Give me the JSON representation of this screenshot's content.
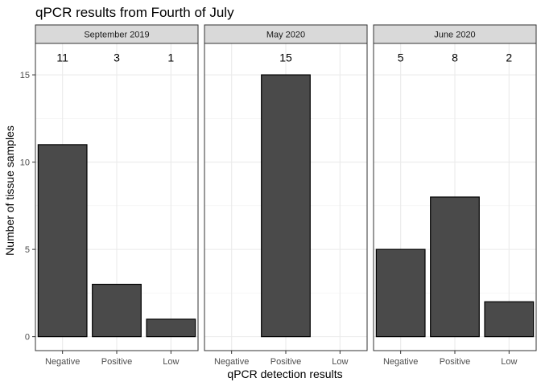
{
  "chart_data": {
    "type": "bar",
    "title": "qPCR results from Fourth of July",
    "xlabel": "qPCR detection results",
    "ylabel": "Number of tissue samples",
    "ylim": [
      -0.8,
      16.8
    ],
    "yticks": [
      0,
      5,
      10,
      15
    ],
    "categories": [
      "Negative",
      "Positive",
      "Low"
    ],
    "grid": true,
    "fill_color": "#4a4a4a",
    "strip_color": "#d9d9d9",
    "panels": [
      {
        "name": "September 2019",
        "values": [
          11,
          3,
          1
        ],
        "labels": [
          "11",
          "3",
          "1"
        ]
      },
      {
        "name": "May 2020",
        "values": [
          0,
          15,
          0
        ],
        "labels": [
          "",
          "15",
          ""
        ]
      },
      {
        "name": "June 2020",
        "values": [
          5,
          8,
          2
        ],
        "labels": [
          "5",
          "8",
          "2"
        ]
      }
    ]
  }
}
